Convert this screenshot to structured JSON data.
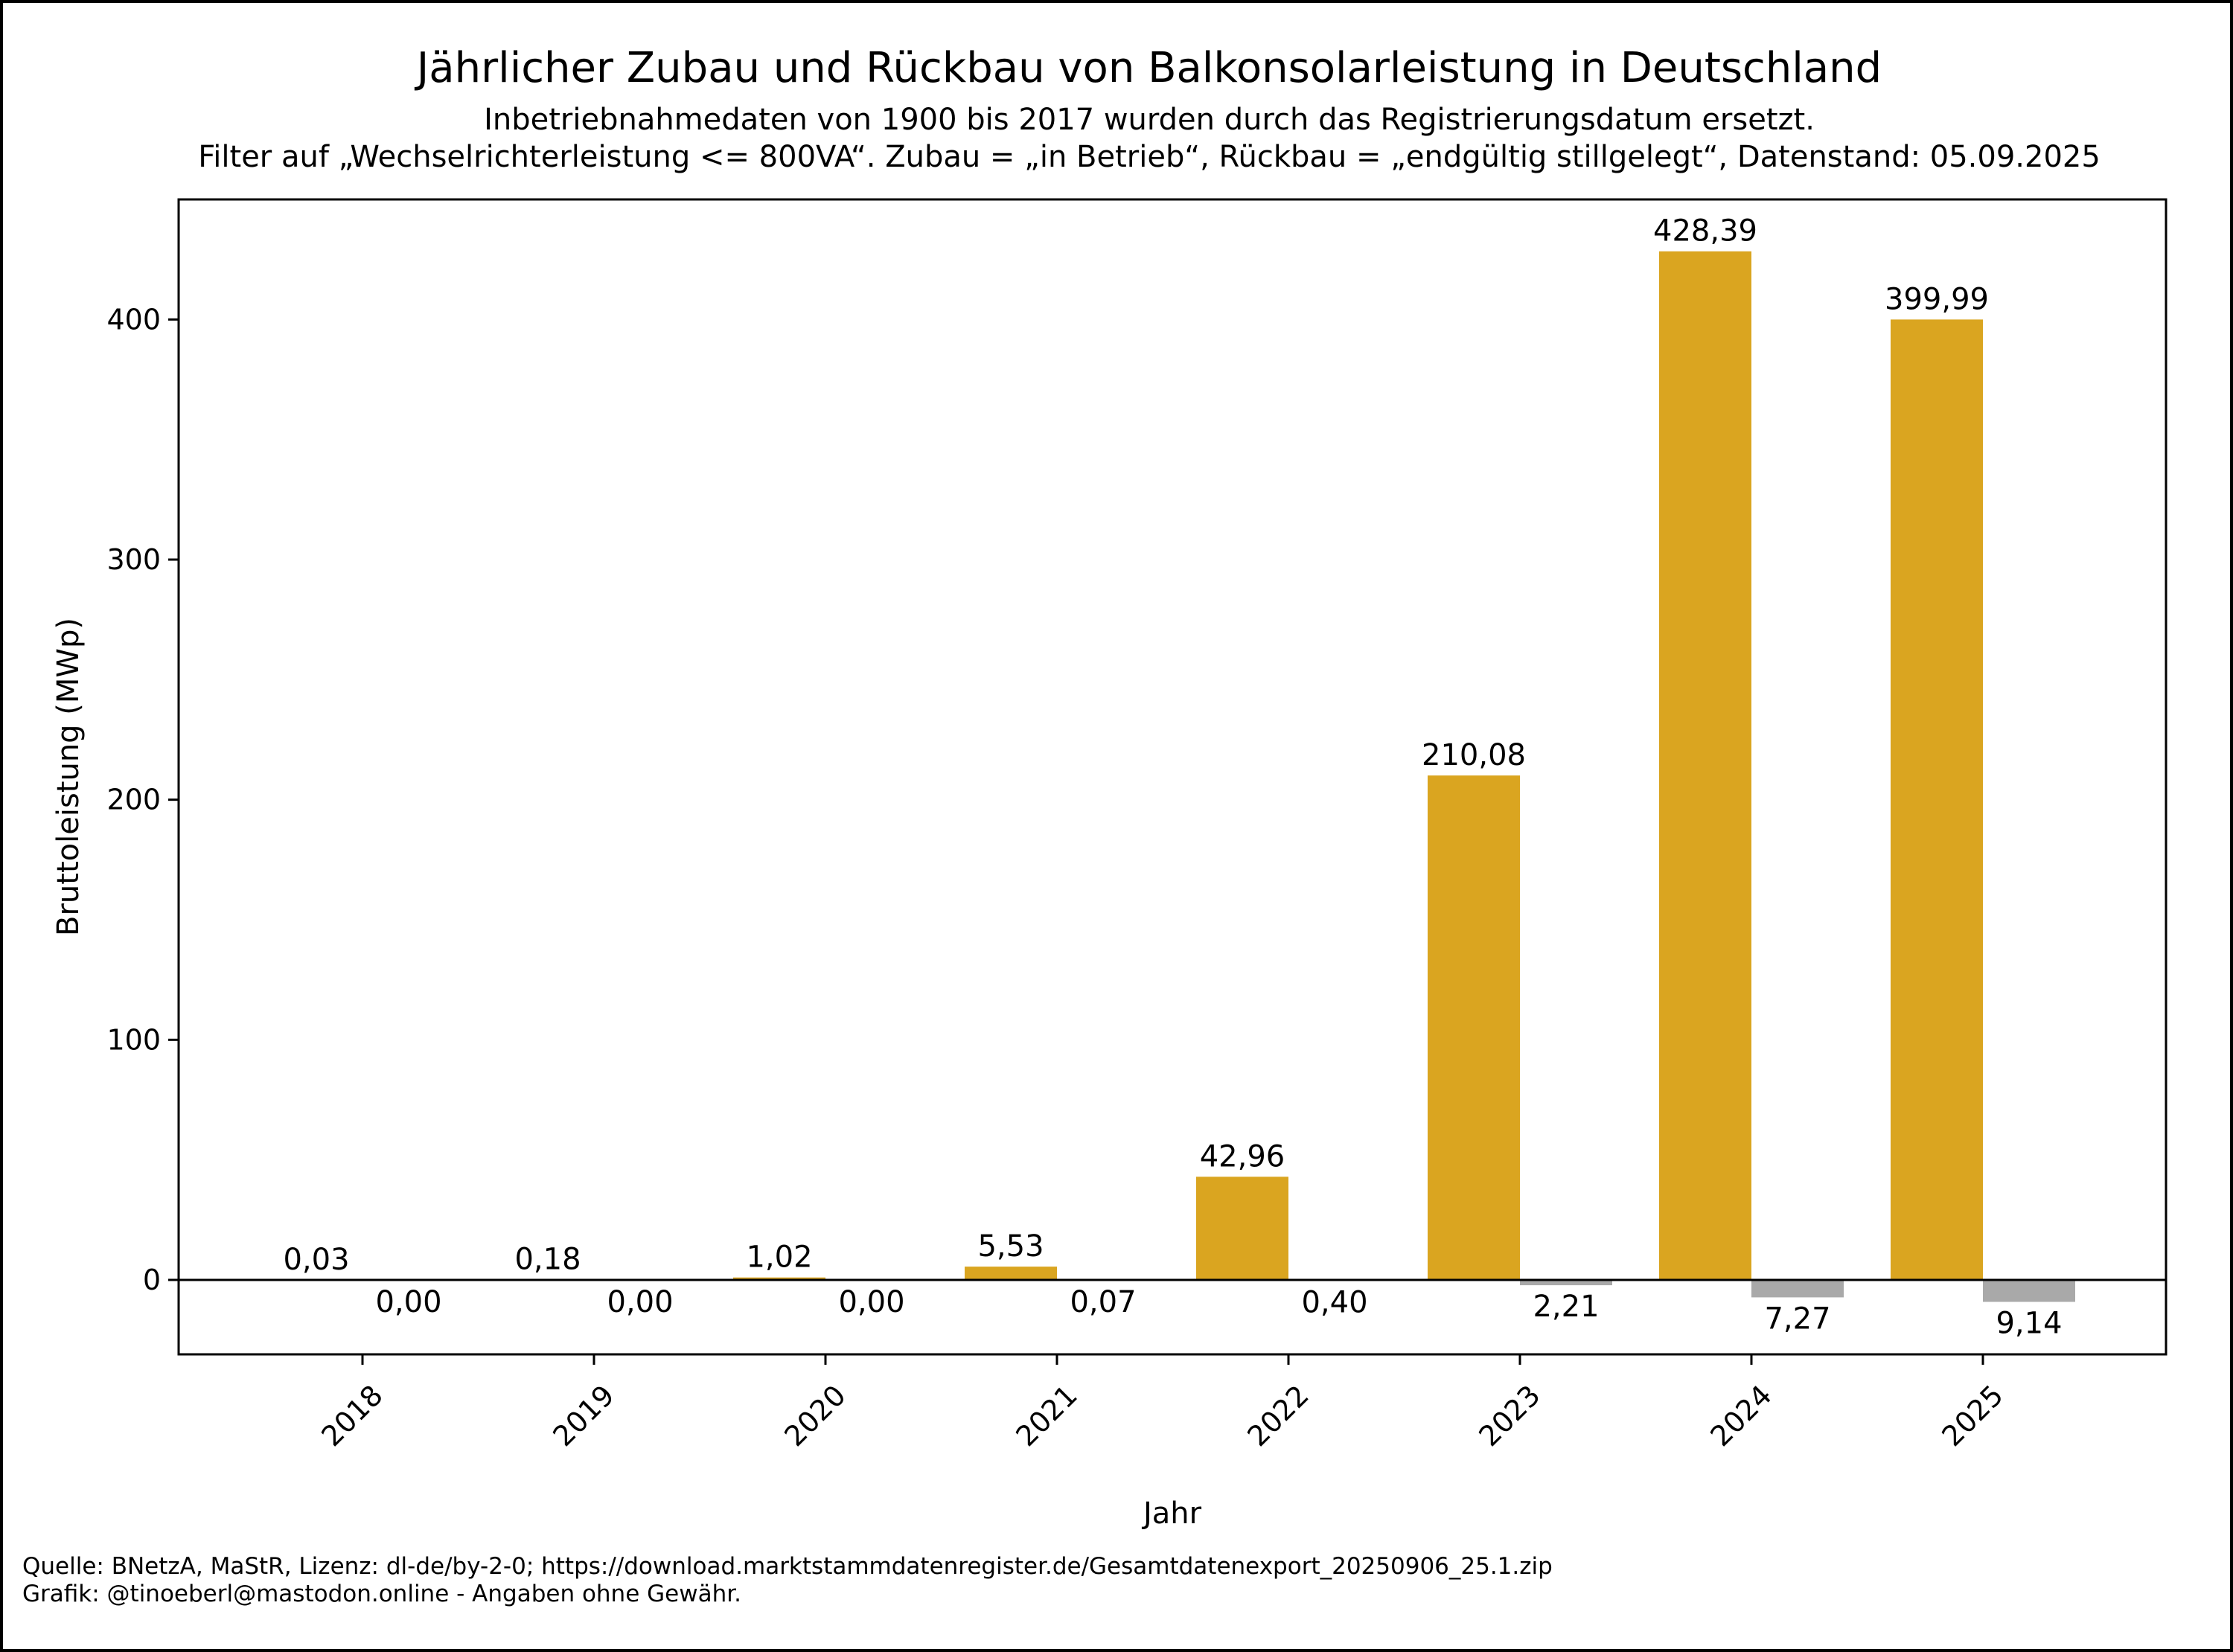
{
  "chart_data": {
    "type": "bar",
    "title": "Jährlicher Zubau und Rückbau von Balkonsolarleistung in Deutschland",
    "subtitle_lines": [
      "Inbetriebnahmedaten von 1900 bis 2017 wurden durch das Registrierungsdatum ersetzt.",
      "Filter auf „Wechselrichterleistung <= 800VA“. Zubau = „in Betrieb“, Rückbau = „endgültig stillgelegt“, Datenstand: 05.09.2025"
    ],
    "xlabel": "Jahr",
    "ylabel": "Bruttoleistung (MWp)",
    "categories": [
      "2018",
      "2019",
      "2020",
      "2021",
      "2022",
      "2023",
      "2024",
      "2025"
    ],
    "series": [
      {
        "key": "zubau",
        "values": [
          0.03,
          0.18,
          1.02,
          5.53,
          42.96,
          210.08,
          428.39,
          399.99
        ],
        "labels": [
          "0,03",
          "0,18",
          "1,02",
          "5,53",
          "42,96",
          "210,08",
          "428,39",
          "399,99"
        ],
        "color": "#DAA520"
      },
      {
        "key": "rueckbau",
        "values": [
          0.0,
          0.0,
          0.0,
          -0.07,
          -0.4,
          -2.21,
          -7.27,
          -9.14
        ],
        "labels": [
          "0,00",
          "0,00",
          "0,00",
          "0,07",
          "0,40",
          "2,21",
          "7,27",
          "9,14"
        ],
        "color": "#A9A9A9"
      }
    ],
    "ylim": [
      -31,
      450
    ],
    "yticks": [
      0,
      100,
      200,
      300,
      400
    ],
    "ytick_labels": [
      "0",
      "100",
      "200",
      "300",
      "400"
    ],
    "grid": false,
    "zero_line": true
  },
  "footer": {
    "line1": "Quelle: BNetzA, MaStR, Lizenz: dl-de/by-2-0; https://download.marktstammdatenregister.de/Gesamtdatenexport_20250906_25.1.zip",
    "line2": "Grafik: @tinoeberl@mastodon.online - Angaben ohne Gewähr."
  }
}
